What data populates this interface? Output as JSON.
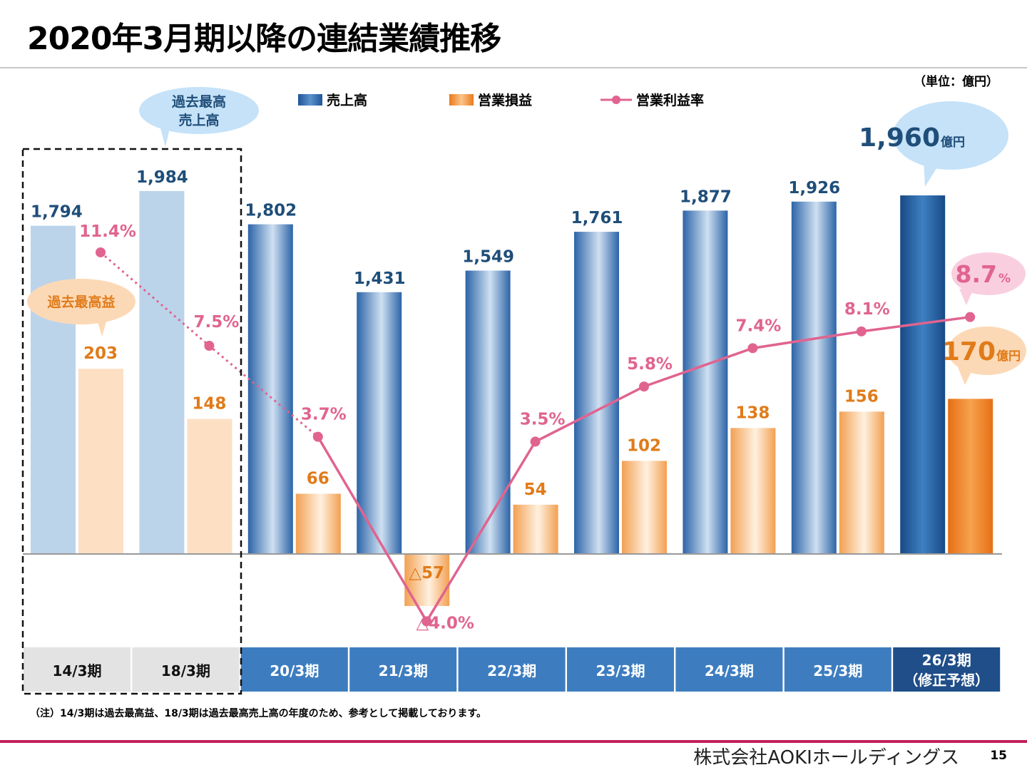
{
  "title": "2020年3月期以降の連結業績推移",
  "unit_label": "（単位：億円）",
  "legend": {
    "sales": "売上高",
    "op_profit": "営業損益",
    "op_margin": "営業利益率"
  },
  "callouts": {
    "record_sales": [
      "過去最高",
      "売上高"
    ],
    "record_profit": "過去最高益",
    "forecast_sales_value": "1,960",
    "forecast_sales_unit": "億円",
    "forecast_margin_value": "8.7",
    "forecast_margin_unit": "%",
    "forecast_profit_value": "170",
    "forecast_profit_unit": "億円"
  },
  "footnote": "（注）14/3期は過去最高益、18/3期は過去最高売上高の年度のため、参考として掲載しております。",
  "footer": {
    "company": "株式会社AOKIホールディングス",
    "page": "15"
  },
  "colors": {
    "sales": "#2f6aad",
    "op_profit": "#f08a2c",
    "op_margin": "#e0648f",
    "sales_label": "#1f4e79",
    "profit_label": "#e07b1a",
    "accent_line": "#c21f5b"
  },
  "chart_data": {
    "type": "bar+line",
    "categories": [
      "14/3期",
      "18/3期",
      "20/3期",
      "21/3期",
      "22/3期",
      "23/3期",
      "24/3期",
      "25/3期",
      "26/3期\n（修正予想）"
    ],
    "category_lines": [
      [
        "14/3期"
      ],
      [
        "18/3期"
      ],
      [
        "20/3期"
      ],
      [
        "21/3期"
      ],
      [
        "22/3期"
      ],
      [
        "23/3期"
      ],
      [
        "24/3期"
      ],
      [
        "25/3期"
      ],
      [
        "26/3期",
        "（修正予想）"
      ]
    ],
    "reference_periods": [
      "14/3期",
      "18/3期"
    ],
    "forecast_period": "26/3期",
    "series": [
      {
        "name": "売上高",
        "type": "bar",
        "values": [
          1794,
          1984,
          1802,
          1431,
          1549,
          1761,
          1877,
          1926,
          1960
        ],
        "labels": [
          "1,794",
          "1,984",
          "1,802",
          "1,431",
          "1,549",
          "1,761",
          "1,877",
          "1,926",
          ""
        ]
      },
      {
        "name": "営業損益",
        "type": "bar",
        "values": [
          203,
          148,
          66,
          -57,
          54,
          102,
          138,
          156,
          170
        ],
        "labels": [
          "203",
          "148",
          "66",
          "△57",
          "54",
          "102",
          "138",
          "156",
          ""
        ]
      },
      {
        "name": "営業利益率",
        "type": "line",
        "values": [
          11.4,
          7.5,
          3.7,
          -4.0,
          3.5,
          5.8,
          7.4,
          8.1,
          8.7
        ],
        "labels": [
          "11.4%",
          "7.5%",
          "3.7%",
          "△4.0%",
          "3.5%",
          "5.8%",
          "7.4%",
          "8.1%",
          ""
        ]
      }
    ],
    "grid": false,
    "legend_position": "top"
  }
}
